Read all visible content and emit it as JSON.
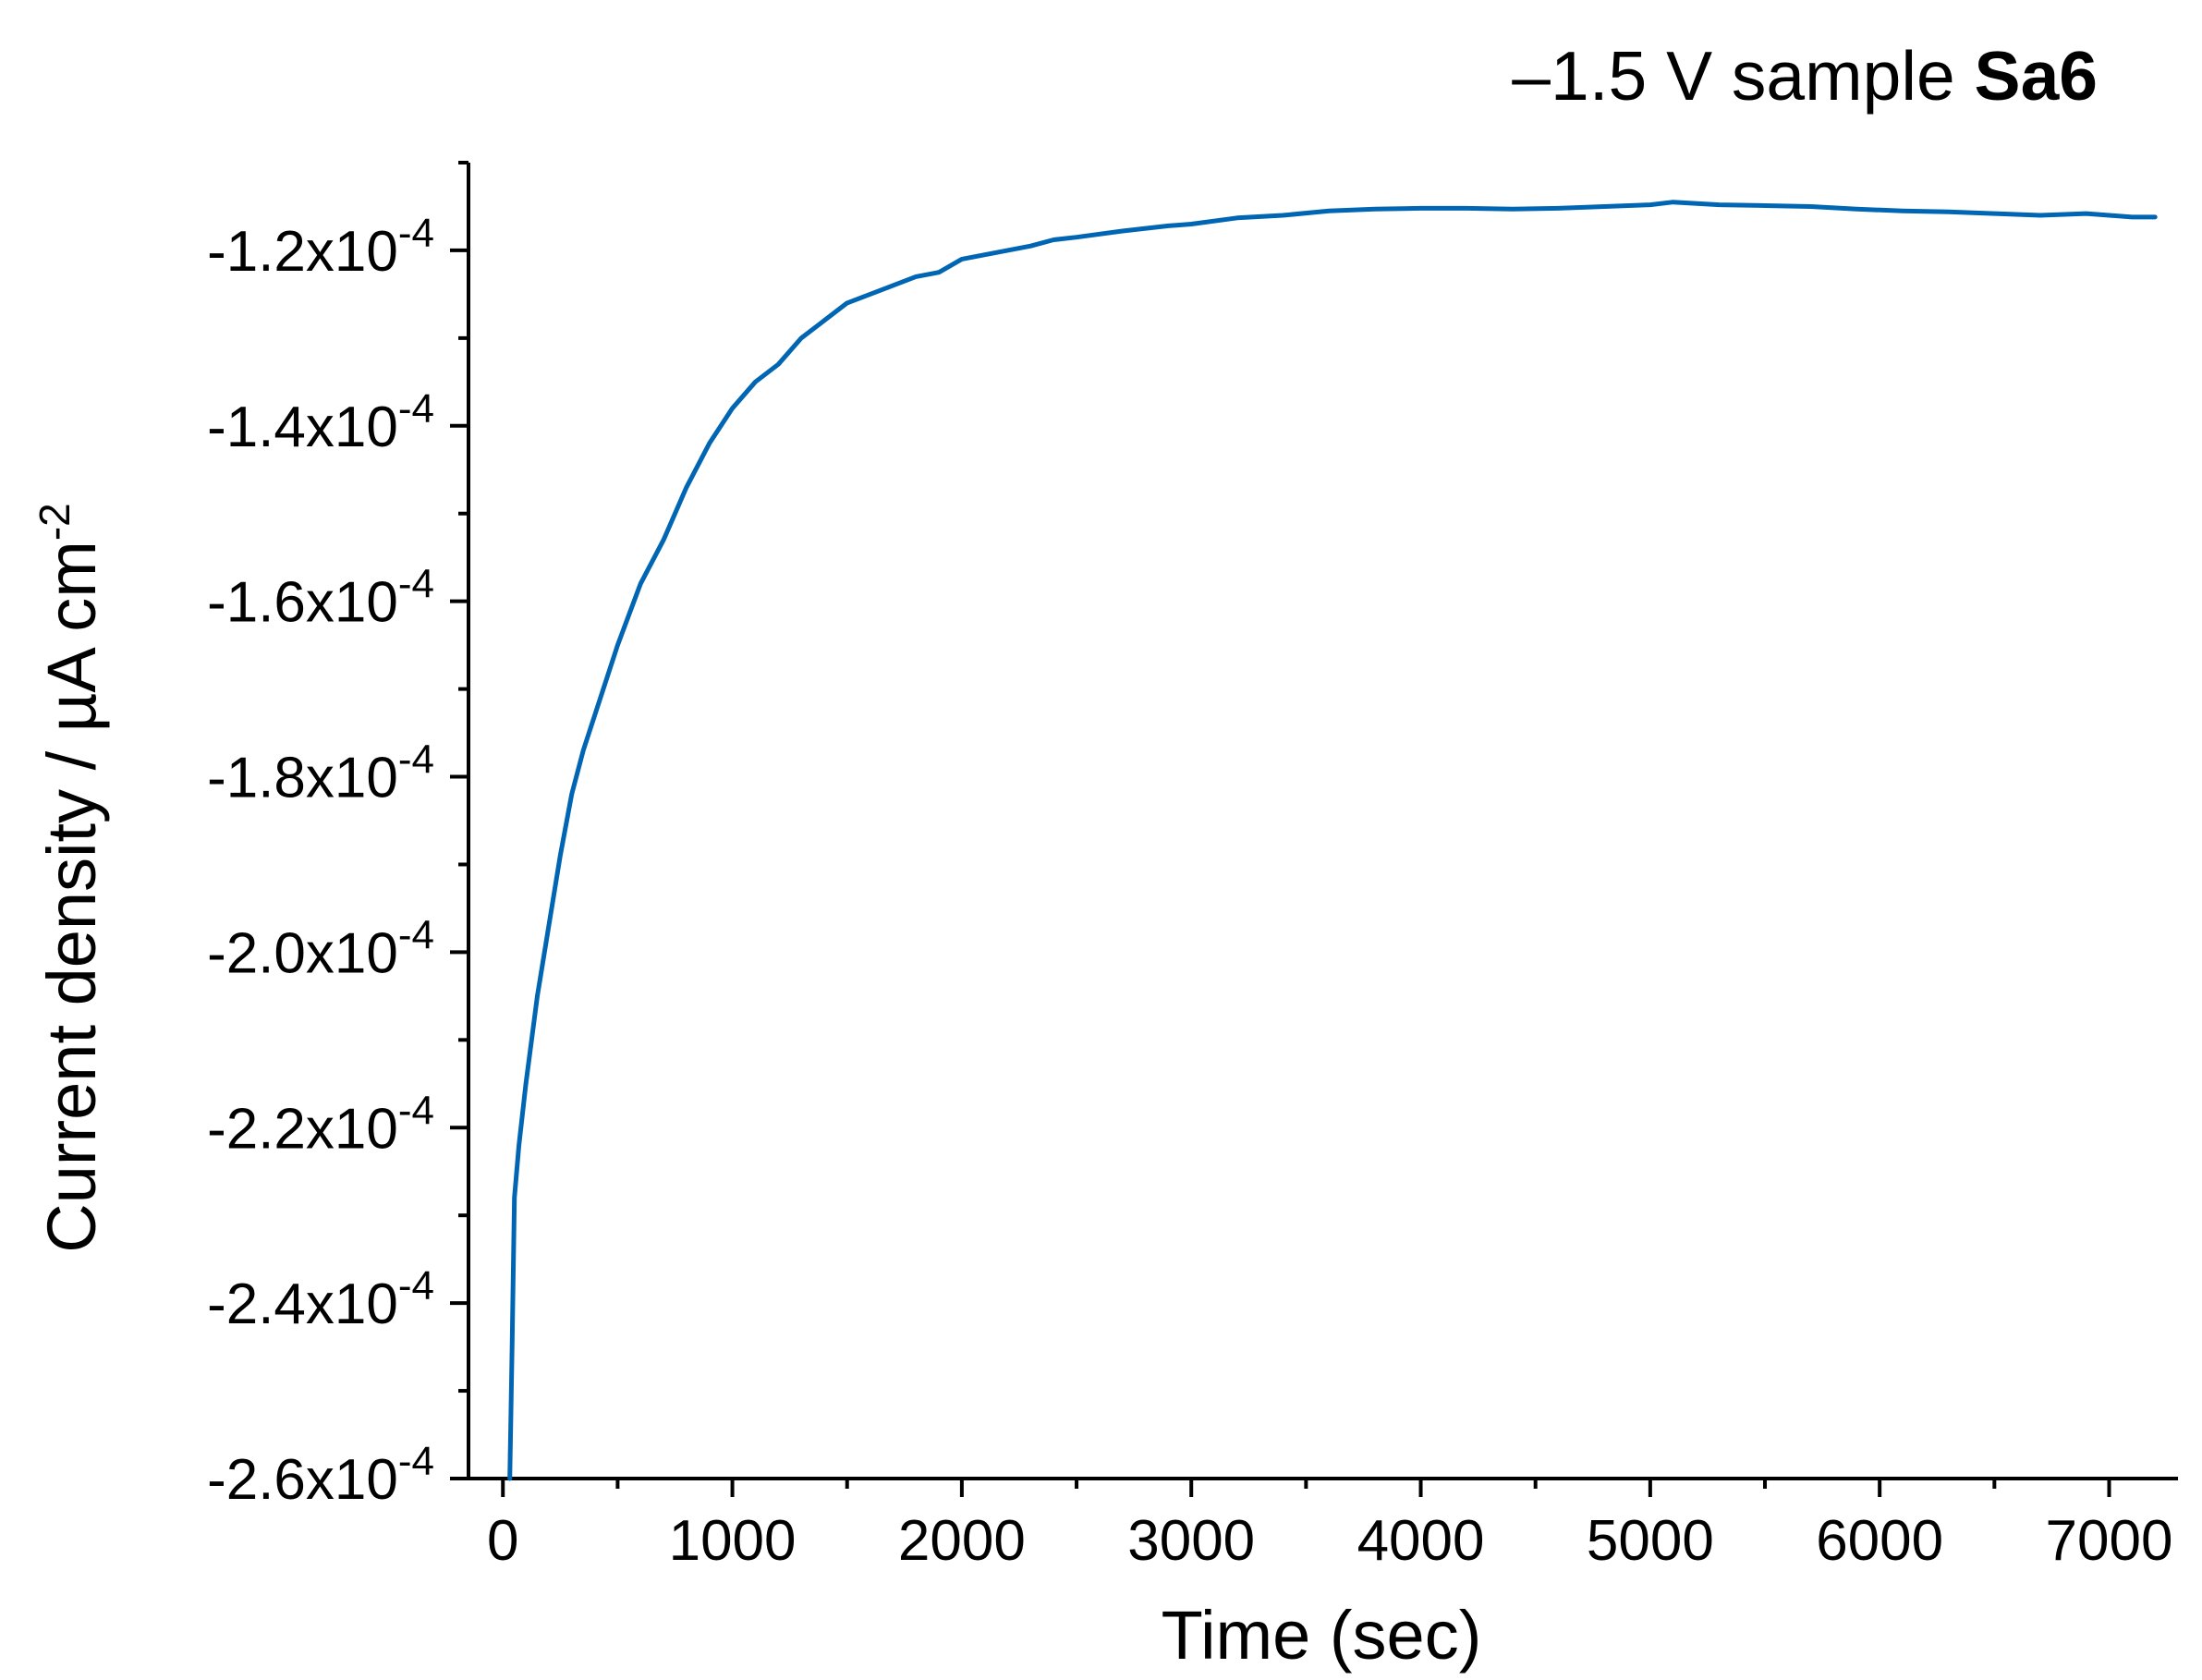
{
  "chart_data": {
    "type": "line",
    "title": {
      "prefix": "–1.5 V sample ",
      "bold": "Sa6"
    },
    "xlabel": "Time (sec)",
    "ylabel": {
      "text": "Current density / µA cm",
      "superscript": "-2"
    },
    "xlim": [
      -150,
      7300
    ],
    "ylim": [
      -0.00026,
      -0.00011
    ],
    "x_ticks": [
      0,
      1000,
      2000,
      3000,
      4000,
      5000,
      6000,
      7000
    ],
    "x_tick_labels": [
      "0",
      "1000",
      "2000",
      "3000",
      "4000",
      "5000",
      "6000",
      "7000"
    ],
    "y_ticks": [
      -0.00012,
      -0.00014,
      -0.00016,
      -0.00018,
      -0.0002,
      -0.00022,
      -0.00024,
      -0.00026
    ],
    "y_tick_labels": [
      {
        "mantissa": "-1.2x10",
        "exponent": "-4"
      },
      {
        "mantissa": "-1.4x10",
        "exponent": "-4"
      },
      {
        "mantissa": "-1.6x10",
        "exponent": "-4"
      },
      {
        "mantissa": "-1.8x10",
        "exponent": "-4"
      },
      {
        "mantissa": "-2.0x10",
        "exponent": "-4"
      },
      {
        "mantissa": "-2.2x10",
        "exponent": "-4"
      },
      {
        "mantissa": "-2.4x10",
        "exponent": "-4"
      },
      {
        "mantissa": "-2.6x10",
        "exponent": "-4"
      }
    ],
    "grid": false,
    "legend": "none",
    "series": [
      {
        "color": "#0066b3",
        "points": [
          [
            30,
            -0.00026
          ],
          [
            40,
            -0.000245
          ],
          [
            50,
            -0.000228
          ],
          [
            70,
            -0.000222
          ],
          [
            100,
            -0.000215
          ],
          [
            150,
            -0.000205
          ],
          [
            200,
            -0.000197
          ],
          [
            250,
            -0.000189
          ],
          [
            300,
            -0.000182
          ],
          [
            350,
            -0.000177
          ],
          [
            400,
            -0.000173
          ],
          [
            450,
            -0.000169
          ],
          [
            500,
            -0.000165
          ],
          [
            600,
            -0.000158
          ],
          [
            700,
            -0.000153
          ],
          [
            800,
            -0.000147
          ],
          [
            900,
            -0.000142
          ],
          [
            1000,
            -0.000138
          ],
          [
            1100,
            -0.000135
          ],
          [
            1200,
            -0.000133
          ],
          [
            1300,
            -0.00013
          ],
          [
            1400,
            -0.000128
          ],
          [
            1500,
            -0.000126
          ],
          [
            1600,
            -0.000125
          ],
          [
            1700,
            -0.000124
          ],
          [
            1800,
            -0.000123
          ],
          [
            1900,
            -0.0001225
          ],
          [
            2000,
            -0.000121
          ],
          [
            2100,
            -0.0001205
          ],
          [
            2200,
            -0.00012
          ],
          [
            2300,
            -0.0001195
          ],
          [
            2400,
            -0.0001188
          ],
          [
            2500,
            -0.0001185
          ],
          [
            2700,
            -0.0001178
          ],
          [
            2900,
            -0.0001172
          ],
          [
            3000,
            -0.000117
          ],
          [
            3200,
            -0.0001163
          ],
          [
            3400,
            -0.000116
          ],
          [
            3600,
            -0.0001155
          ],
          [
            3800,
            -0.0001153
          ],
          [
            4000,
            -0.0001152
          ],
          [
            4200,
            -0.0001152
          ],
          [
            4400,
            -0.0001153
          ],
          [
            4600,
            -0.0001152
          ],
          [
            4800,
            -0.000115
          ],
          [
            5000,
            -0.0001148
          ],
          [
            5100,
            -0.0001145
          ],
          [
            5300,
            -0.0001148
          ],
          [
            5500,
            -0.0001149
          ],
          [
            5700,
            -0.000115
          ],
          [
            5900,
            -0.0001153
          ],
          [
            6100,
            -0.0001155
          ],
          [
            6300,
            -0.0001156
          ],
          [
            6500,
            -0.0001158
          ],
          [
            6700,
            -0.000116
          ],
          [
            6900,
            -0.0001158
          ],
          [
            7000,
            -0.000116
          ],
          [
            7100,
            -0.0001162
          ],
          [
            7200,
            -0.0001162
          ]
        ]
      }
    ]
  }
}
